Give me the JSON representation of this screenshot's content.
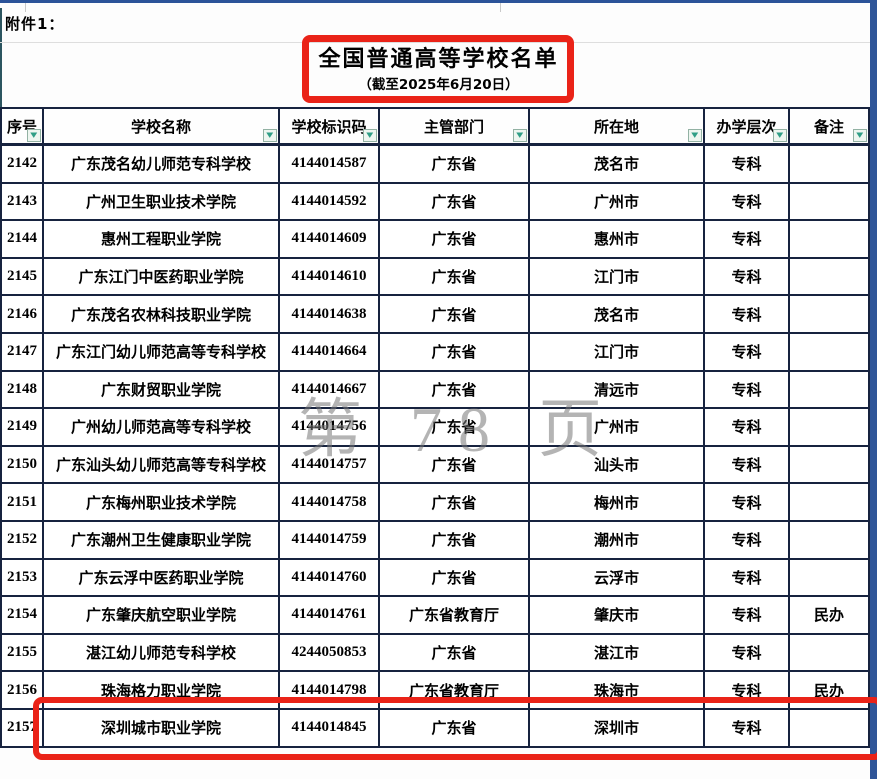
{
  "page": {
    "attachment_label": "附件1：",
    "title": "全国普通高等学校名单",
    "subtitle": "（截至2025年6月20日）",
    "watermark": "第 78 页"
  },
  "colors": {
    "annotation_red": "#ea2318",
    "table_border": "#17233f",
    "frame_blue": "#2f5598",
    "filter_arrow_teal": "#2f9e86",
    "watermark_gray": "#767676"
  },
  "icons": {
    "filter_dropdown_icon": "▼"
  },
  "table": {
    "columns": [
      {
        "key": "seq",
        "label": "序号"
      },
      {
        "key": "name",
        "label": "学校名称"
      },
      {
        "key": "code",
        "label": "学校标识码"
      },
      {
        "key": "dept",
        "label": "主管部门"
      },
      {
        "key": "city",
        "label": "所在地"
      },
      {
        "key": "level",
        "label": "办学层次"
      },
      {
        "key": "note",
        "label": "备注"
      }
    ],
    "rows": [
      [
        "2142",
        "广东茂名幼儿师范专科学校",
        "4144014587",
        "广东省",
        "茂名市",
        "专科",
        ""
      ],
      [
        "2143",
        "广州卫生职业技术学院",
        "4144014592",
        "广东省",
        "广州市",
        "专科",
        ""
      ],
      [
        "2144",
        "惠州工程职业学院",
        "4144014609",
        "广东省",
        "惠州市",
        "专科",
        ""
      ],
      [
        "2145",
        "广东江门中医药职业学院",
        "4144014610",
        "广东省",
        "江门市",
        "专科",
        ""
      ],
      [
        "2146",
        "广东茂名农林科技职业学院",
        "4144014638",
        "广东省",
        "茂名市",
        "专科",
        ""
      ],
      [
        "2147",
        "广东江门幼儿师范高等专科学校",
        "4144014664",
        "广东省",
        "江门市",
        "专科",
        ""
      ],
      [
        "2148",
        "广东财贸职业学院",
        "4144014667",
        "广东省",
        "清远市",
        "专科",
        ""
      ],
      [
        "2149",
        "广州幼儿师范高等专科学校",
        "4144014756",
        "广东省",
        "广州市",
        "专科",
        ""
      ],
      [
        "2150",
        "广东汕头幼儿师范高等专科学校",
        "4144014757",
        "广东省",
        "汕头市",
        "专科",
        ""
      ],
      [
        "2151",
        "广东梅州职业技术学院",
        "4144014758",
        "广东省",
        "梅州市",
        "专科",
        ""
      ],
      [
        "2152",
        "广东潮州卫生健康职业学院",
        "4144014759",
        "广东省",
        "潮州市",
        "专科",
        ""
      ],
      [
        "2153",
        "广东云浮中医药职业学院",
        "4144014760",
        "广东省",
        "云浮市",
        "专科",
        ""
      ],
      [
        "2154",
        "广东肇庆航空职业学院",
        "4144014761",
        "广东省教育厅",
        "肇庆市",
        "专科",
        "民办"
      ],
      [
        "2155",
        "湛江幼儿师范专科学校",
        "4244050853",
        "广东省",
        "湛江市",
        "专科",
        ""
      ],
      [
        "2156",
        "珠海格力职业学院",
        "4144014798",
        "广东省教育厅",
        "珠海市",
        "专科",
        "民办"
      ],
      [
        "2157",
        "深圳城市职业学院",
        "4144014845",
        "广东省",
        "深圳市",
        "专科",
        ""
      ]
    ],
    "highlighted_row_seq": "2156"
  }
}
